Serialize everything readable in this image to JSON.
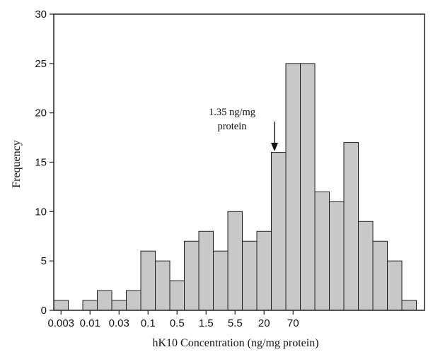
{
  "chart_data": {
    "type": "bar",
    "xlabel": "hK10 Concentration (ng/mg protein)",
    "ylabel": "Frequency",
    "ylim": [
      0,
      30
    ],
    "yticks": [
      0,
      5,
      10,
      15,
      20,
      25,
      30
    ],
    "x_tick_labels": [
      "0.003",
      "0.01",
      "0.03",
      "0.1",
      "0.5",
      "1.5",
      "5.5",
      "20",
      "70"
    ],
    "x_tick_bin_index": [
      0,
      2,
      4,
      6,
      8,
      10,
      12,
      14,
      16
    ],
    "values": [
      1,
      0,
      1,
      2,
      1,
      2,
      6,
      5,
      3,
      7,
      8,
      6,
      10,
      7,
      8,
      16,
      25,
      25,
      12,
      11,
      17,
      9,
      7,
      5,
      1
    ],
    "grid": false,
    "legend": "none",
    "annotation": {
      "lines": [
        "1.35 ng/mg",
        "protein"
      ],
      "bin_index": 15
    },
    "colors": {
      "bar_fill": "#c8c8c8",
      "bar_edge": "#222222"
    }
  }
}
